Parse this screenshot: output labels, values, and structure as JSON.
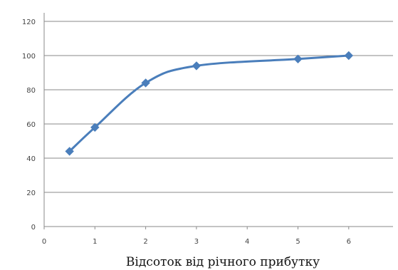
{
  "chart_data": {
    "type": "line",
    "title": "",
    "xlabel": "Відсоток від річного прибутку",
    "ylabel": "",
    "xlim": [
      0,
      6
    ],
    "ylim": [
      0,
      120
    ],
    "x_ticks": [
      "0",
      "1",
      "2",
      "3",
      "4",
      "5",
      "6"
    ],
    "y_ticks": [
      "0",
      "20",
      "40",
      "60",
      "80",
      "100",
      "120"
    ],
    "grid": "horizontal",
    "legend": "none",
    "series": [
      {
        "color": "#4a7ebb",
        "marker": "diamond",
        "x": [
          0.5,
          1,
          2,
          3,
          5,
          6
        ],
        "y": [
          44,
          58,
          84,
          94,
          98,
          100
        ]
      }
    ]
  }
}
